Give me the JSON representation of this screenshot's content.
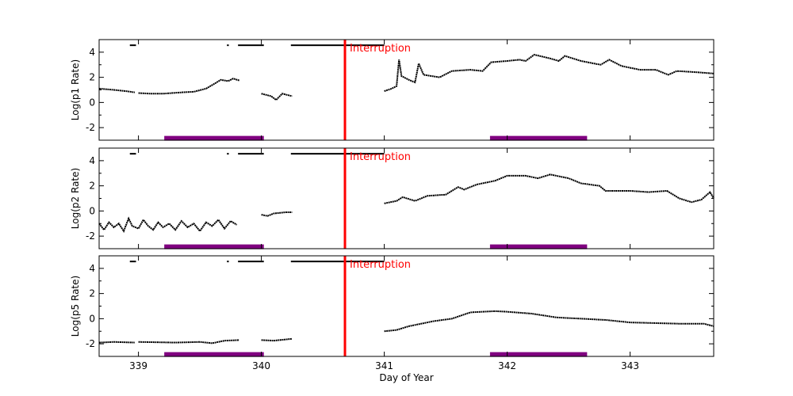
{
  "chart_data": {
    "type": "line",
    "xlabel": "Day of Year",
    "xlim": [
      338.68,
      343.68
    ],
    "xticks": [
      "339",
      "340",
      "341",
      "342",
      "343"
    ],
    "colors": {
      "data": "#000000",
      "interruption": "#ff0000",
      "band": "#800080"
    },
    "grid": false,
    "panels": [
      {
        "ylabel": "Log(p1 Rate)",
        "ylim": [
          -3,
          5
        ],
        "yticks": [
          "4",
          "2",
          "0",
          "-2"
        ],
        "segments": [
          [
            [
              338.68,
              1.1
            ],
            [
              338.8,
              1.0
            ],
            [
              338.9,
              0.9
            ],
            [
              338.97,
              0.8
            ]
          ],
          [
            [
              339.0,
              0.75
            ],
            [
              339.1,
              0.7
            ],
            [
              339.2,
              0.7
            ],
            [
              339.35,
              0.8
            ],
            [
              339.45,
              0.85
            ],
            [
              339.55,
              1.1
            ],
            [
              339.62,
              1.5
            ],
            [
              339.67,
              1.8
            ],
            [
              339.73,
              1.7
            ],
            [
              339.77,
              1.9
            ],
            [
              339.82,
              1.75
            ]
          ],
          [
            [
              340.0,
              0.7
            ],
            [
              340.08,
              0.5
            ],
            [
              340.12,
              0.2
            ],
            [
              340.17,
              0.7
            ],
            [
              340.25,
              0.5
            ]
          ],
          [
            [
              341.0,
              0.9
            ],
            [
              341.06,
              1.1
            ],
            [
              341.1,
              1.3
            ],
            [
              341.12,
              3.4
            ],
            [
              341.14,
              2.1
            ],
            [
              341.2,
              1.8
            ],
            [
              341.25,
              1.6
            ],
            [
              341.28,
              3.1
            ],
            [
              341.32,
              2.2
            ],
            [
              341.45,
              2.0
            ],
            [
              341.55,
              2.5
            ],
            [
              341.7,
              2.6
            ],
            [
              341.8,
              2.5
            ],
            [
              341.87,
              3.2
            ],
            [
              342.0,
              3.3
            ],
            [
              342.1,
              3.4
            ],
            [
              342.15,
              3.3
            ],
            [
              342.22,
              3.8
            ],
            [
              342.35,
              3.5
            ],
            [
              342.42,
              3.3
            ],
            [
              342.47,
              3.7
            ],
            [
              342.6,
              3.3
            ],
            [
              342.76,
              3.0
            ],
            [
              342.83,
              3.4
            ],
            [
              342.93,
              2.9
            ],
            [
              343.08,
              2.6
            ],
            [
              343.21,
              2.6
            ],
            [
              343.31,
              2.2
            ],
            [
              343.38,
              2.5
            ],
            [
              343.55,
              2.4
            ],
            [
              343.68,
              2.3
            ]
          ]
        ]
      },
      {
        "ylabel": "Log(p2 Rate)",
        "ylim": [
          -3,
          5
        ],
        "yticks": [
          "4",
          "2",
          "0",
          "-2"
        ],
        "segments": [
          [
            [
              338.68,
              -1.0
            ],
            [
              338.72,
              -1.5
            ],
            [
              338.76,
              -0.9
            ],
            [
              338.8,
              -1.3
            ],
            [
              338.84,
              -1.0
            ],
            [
              338.88,
              -1.6
            ],
            [
              338.92,
              -0.6
            ],
            [
              338.95,
              -1.2
            ],
            [
              339.0,
              -1.4
            ],
            [
              339.04,
              -0.7
            ],
            [
              339.08,
              -1.2
            ],
            [
              339.12,
              -1.5
            ],
            [
              339.16,
              -0.9
            ],
            [
              339.2,
              -1.3
            ],
            [
              339.25,
              -1.0
            ],
            [
              339.3,
              -1.5
            ],
            [
              339.35,
              -0.8
            ],
            [
              339.4,
              -1.3
            ],
            [
              339.45,
              -1.0
            ],
            [
              339.5,
              -1.6
            ],
            [
              339.55,
              -0.9
            ],
            [
              339.6,
              -1.2
            ],
            [
              339.65,
              -0.7
            ],
            [
              339.7,
              -1.4
            ],
            [
              339.75,
              -0.8
            ],
            [
              339.8,
              -1.1
            ]
          ],
          [
            [
              340.0,
              -0.3
            ],
            [
              340.05,
              -0.4
            ],
            [
              340.1,
              -0.2
            ],
            [
              340.2,
              -0.1
            ],
            [
              340.25,
              -0.1
            ]
          ],
          [
            [
              341.0,
              0.6
            ],
            [
              341.1,
              0.8
            ],
            [
              341.15,
              1.1
            ],
            [
              341.25,
              0.8
            ],
            [
              341.35,
              1.2
            ],
            [
              341.5,
              1.3
            ],
            [
              341.6,
              1.9
            ],
            [
              341.65,
              1.7
            ],
            [
              341.75,
              2.1
            ],
            [
              341.9,
              2.4
            ],
            [
              342.0,
              2.8
            ],
            [
              342.15,
              2.8
            ],
            [
              342.25,
              2.6
            ],
            [
              342.35,
              2.9
            ],
            [
              342.5,
              2.6
            ],
            [
              342.6,
              2.2
            ],
            [
              342.75,
              2.0
            ],
            [
              342.8,
              1.6
            ],
            [
              343.0,
              1.6
            ],
            [
              343.15,
              1.5
            ],
            [
              343.3,
              1.6
            ],
            [
              343.4,
              1.0
            ],
            [
              343.5,
              0.7
            ],
            [
              343.58,
              0.9
            ],
            [
              343.65,
              1.5
            ],
            [
              343.68,
              1.0
            ]
          ]
        ]
      },
      {
        "ylabel": "Log(p5 Rate)",
        "ylim": [
          -3,
          5
        ],
        "yticks": [
          "4",
          "2",
          "0",
          "-2"
        ],
        "segments": [
          [
            [
              338.68,
              -1.9
            ],
            [
              338.8,
              -1.85
            ],
            [
              338.97,
              -1.9
            ]
          ],
          [
            [
              339.0,
              -1.85
            ],
            [
              339.3,
              -1.9
            ],
            [
              339.5,
              -1.85
            ],
            [
              339.6,
              -1.95
            ],
            [
              339.7,
              -1.75
            ],
            [
              339.82,
              -1.7
            ]
          ],
          [
            [
              340.0,
              -1.7
            ],
            [
              340.1,
              -1.75
            ],
            [
              340.25,
              -1.6
            ]
          ],
          [
            [
              341.0,
              -1.0
            ],
            [
              341.1,
              -0.9
            ],
            [
              341.2,
              -0.6
            ],
            [
              341.4,
              -0.2
            ],
            [
              341.55,
              0.0
            ],
            [
              341.7,
              0.5
            ],
            [
              341.9,
              0.6
            ],
            [
              342.0,
              0.55
            ],
            [
              342.2,
              0.4
            ],
            [
              342.4,
              0.1
            ],
            [
              342.6,
              0.0
            ],
            [
              342.8,
              -0.1
            ],
            [
              343.0,
              -0.3
            ],
            [
              343.2,
              -0.35
            ],
            [
              343.4,
              -0.4
            ],
            [
              343.6,
              -0.4
            ],
            [
              343.68,
              -0.6
            ]
          ]
        ]
      }
    ],
    "coverage_bars": {
      "value": 4.55,
      "ranges": [
        [
          338.93,
          338.98
        ],
        [
          339.72,
          339.735
        ],
        [
          339.81,
          340.02
        ],
        [
          340.24,
          341.0
        ]
      ]
    },
    "interruption": {
      "x": 340.68,
      "label": "Interruption"
    },
    "bands": {
      "value": -2.85,
      "ranges": [
        [
          339.21,
          340.02
        ],
        [
          341.86,
          342.65
        ]
      ]
    }
  }
}
